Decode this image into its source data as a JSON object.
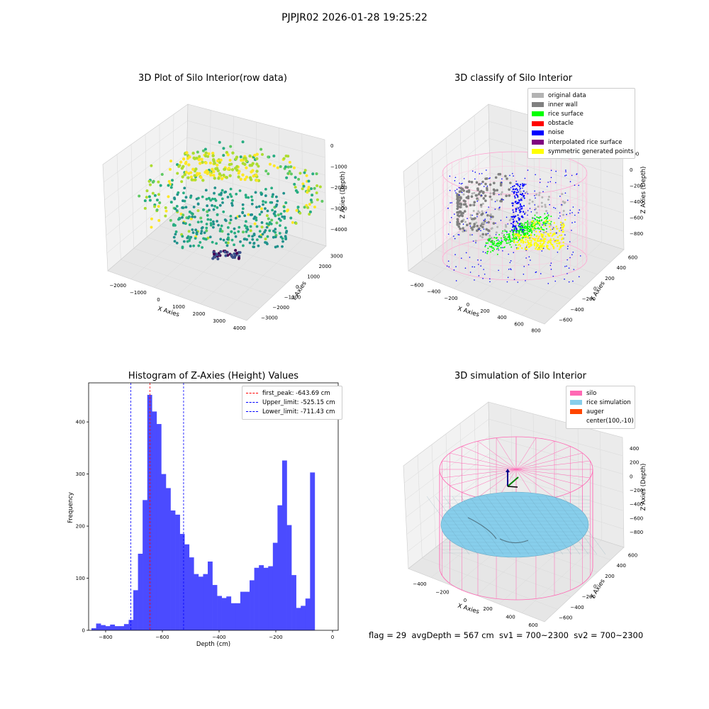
{
  "suptitle": "PJPJR02 2026-01-28 19:25:22",
  "footer": "flag = 29  avgDepth = 567 cm  sv1 = 700~2300  sv2 = 700~2300",
  "chart_data": [
    {
      "type": "scatter3d",
      "title": "3D Plot of Silo Interior(row data)",
      "xlabel": "X Axies",
      "ylabel": "Y Axies",
      "zlabel": "Z Axies (Depth)",
      "x_ticks": [
        "−2000",
        "−1000",
        "0",
        "1000",
        "2000",
        "3000",
        "4000"
      ],
      "y_ticks": [
        "−3000",
        "−2000",
        "−1000",
        "0",
        "1000",
        "2000",
        "3000"
      ],
      "z_ticks": [
        "−4000",
        "−3000",
        "−2000",
        "−1000",
        "0"
      ],
      "colormap": "viridis"
    },
    {
      "type": "scatter3d",
      "title": "3D classify of Silo Interior",
      "xlabel": "X Axies",
      "ylabel": "Y Axies",
      "zlabel": "Z Axies (Depth)",
      "x_ticks": [
        "−600",
        "−400",
        "−200",
        "0",
        "200",
        "400",
        "600",
        "800"
      ],
      "y_ticks": [
        "−600",
        "−400",
        "−200",
        "0",
        "200",
        "400",
        "600"
      ],
      "z_ticks": [
        "−800",
        "−600",
        "−400",
        "−200",
        "0",
        "200"
      ],
      "legend_position": "top-right",
      "legend": [
        {
          "label": "original data",
          "color": "#b3b3b3"
        },
        {
          "label": "inner wall",
          "color": "#808080"
        },
        {
          "label": "rice surface",
          "color": "#00ff00"
        },
        {
          "label": "obstacle",
          "color": "#ff0000"
        },
        {
          "label": "noise",
          "color": "#0000ff"
        },
        {
          "label": "interpolated rice surface",
          "color": "#800080"
        },
        {
          "label": "symmetric generated points",
          "color": "#ffff00"
        }
      ]
    },
    {
      "type": "bar",
      "title": "Histogram of Z-Axies (Height) Values",
      "xlabel": "Depth (cm)",
      "ylabel": "Frequency",
      "xlim": [
        -860,
        20
      ],
      "ylim": [
        0,
        475
      ],
      "x_ticks": [
        -800,
        -600,
        -400,
        -200,
        0
      ],
      "y_ticks": [
        0,
        100,
        200,
        300,
        400
      ],
      "bin_start": -850,
      "bin_width": 16.4,
      "values": [
        4,
        13,
        10,
        8,
        11,
        8,
        8,
        12,
        20,
        77,
        147,
        250,
        452,
        420,
        396,
        300,
        273,
        230,
        222,
        185,
        165,
        140,
        108,
        103,
        108,
        132,
        87,
        66,
        62,
        65,
        52,
        52,
        74,
        74,
        96,
        120,
        125,
        120,
        123,
        168,
        240,
        326,
        202,
        106,
        43,
        47,
        61,
        303
      ],
      "bar_color": "#4b4bff",
      "legend_position": "top-right",
      "lines": [
        {
          "label": "first_peak: -643.69 cm",
          "x": -643.69,
          "color": "#ff0000"
        },
        {
          "label": "Upper_limit: -525.15 cm",
          "x": -525.15,
          "color": "#0000ff"
        },
        {
          "label": "Lower_limit: -711.43 cm",
          "x": -711.43,
          "color": "#0000ff"
        }
      ]
    },
    {
      "type": "surface3d",
      "title": "3D simulation of Silo Interior",
      "xlabel": "X Axies",
      "ylabel": "Y Axies",
      "zlabel": "Z Axies (Depth)",
      "x_ticks": [
        "−400",
        "−200",
        "0",
        "200",
        "400",
        "600"
      ],
      "y_ticks": [
        "−600",
        "−400",
        "−200",
        "0",
        "200",
        "400",
        "600"
      ],
      "z_ticks": [
        "−800",
        "−600",
        "−400",
        "−200",
        "0",
        "200",
        "400"
      ],
      "legend_position": "top-right",
      "legend": [
        {
          "label": "silo",
          "color": "#ff69b4"
        },
        {
          "label": "rice simulation",
          "color": "#87ceeb"
        },
        {
          "label": "auger",
          "color": "#ff4500"
        },
        {
          "label": "center(100,-10)",
          "color": ""
        }
      ]
    }
  ]
}
